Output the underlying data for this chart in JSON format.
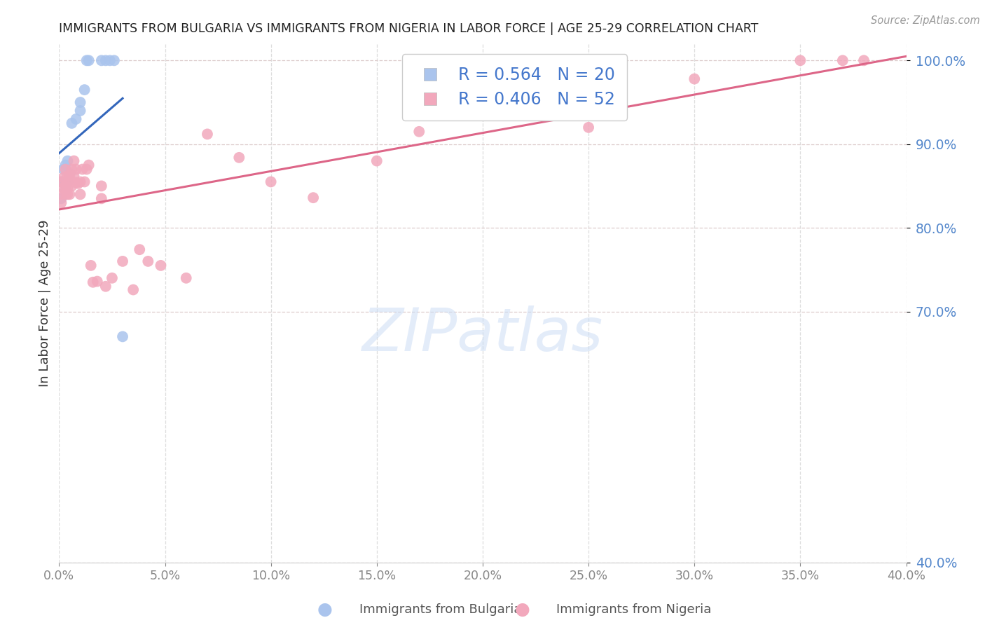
{
  "title": "IMMIGRANTS FROM BULGARIA VS IMMIGRANTS FROM NIGERIA IN LABOR FORCE | AGE 25-29 CORRELATION CHART",
  "source": "Source: ZipAtlas.com",
  "ylabel": "In Labor Force | Age 25-29",
  "bg_color": "#ffffff",
  "bulgaria_color": "#aac4ed",
  "nigeria_color": "#f2a8bc",
  "bulgaria_line_color": "#3366bb",
  "nigeria_line_color": "#dd6688",
  "legend_text_color": "#4477cc",
  "axis_tick_color": "#5588cc",
  "title_color": "#222222",
  "R_bulgaria": 0.564,
  "N_bulgaria": 20,
  "R_nigeria": 0.406,
  "N_nigeria": 52,
  "xlim": [
    0.0,
    0.4
  ],
  "ylim": [
    0.4,
    1.02
  ],
  "yticks": [
    0.4,
    0.7,
    0.8,
    0.9,
    1.0
  ],
  "xticks": [
    0.0,
    0.05,
    0.1,
    0.15,
    0.2,
    0.25,
    0.3,
    0.35,
    0.4
  ],
  "bulgaria_x": [
    0.001,
    0.001,
    0.002,
    0.003,
    0.003,
    0.004,
    0.004,
    0.005,
    0.006,
    0.008,
    0.01,
    0.01,
    0.012,
    0.013,
    0.014,
    0.02,
    0.022,
    0.024,
    0.026,
    0.03
  ],
  "bulgaria_y": [
    0.835,
    0.855,
    0.87,
    0.845,
    0.875,
    0.855,
    0.88,
    0.865,
    0.925,
    0.93,
    0.94,
    0.95,
    0.965,
    1.0,
    1.0,
    1.0,
    1.0,
    1.0,
    1.0,
    0.67
  ],
  "nigeria_x": [
    0.001,
    0.001,
    0.001,
    0.002,
    0.002,
    0.003,
    0.003,
    0.003,
    0.004,
    0.004,
    0.004,
    0.005,
    0.005,
    0.005,
    0.006,
    0.006,
    0.007,
    0.007,
    0.008,
    0.008,
    0.009,
    0.01,
    0.01,
    0.011,
    0.012,
    0.013,
    0.014,
    0.015,
    0.016,
    0.018,
    0.02,
    0.02,
    0.022,
    0.025,
    0.03,
    0.035,
    0.038,
    0.042,
    0.048,
    0.06,
    0.07,
    0.085,
    0.1,
    0.12,
    0.15,
    0.17,
    0.2,
    0.25,
    0.3,
    0.35,
    0.37,
    0.38
  ],
  "nigeria_y": [
    0.84,
    0.855,
    0.83,
    0.86,
    0.848,
    0.84,
    0.87,
    0.85,
    0.84,
    0.862,
    0.848,
    0.858,
    0.84,
    0.862,
    0.87,
    0.85,
    0.862,
    0.88,
    0.854,
    0.87,
    0.853,
    0.84,
    0.855,
    0.87,
    0.855,
    0.87,
    0.875,
    0.755,
    0.735,
    0.736,
    0.835,
    0.85,
    0.73,
    0.74,
    0.76,
    0.726,
    0.774,
    0.76,
    0.755,
    0.74,
    0.912,
    0.884,
    0.855,
    0.836,
    0.88,
    0.915,
    0.975,
    0.92,
    0.978,
    1.0,
    1.0,
    1.0
  ],
  "bg_label_bulgaria": "Immigrants from Bulgaria",
  "bg_label_nigeria": "Immigrants from Nigeria",
  "watermark": "ZIPatlas"
}
